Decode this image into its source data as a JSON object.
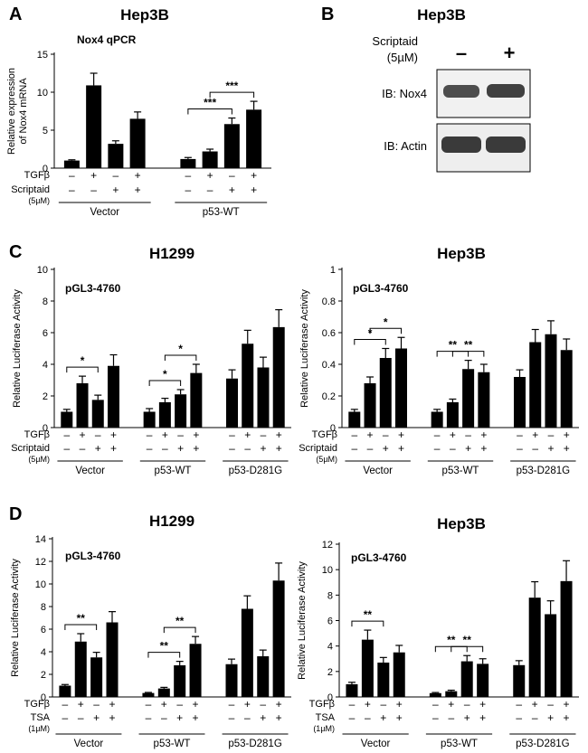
{
  "panels": {
    "A": {
      "letter": "A",
      "title": "Hep3B",
      "inset": "Nox4 qPCR",
      "ylabel": [
        "Relative expression",
        "of Nox4 mRNA"
      ]
    },
    "B": {
      "letter": "B",
      "title": "Hep3B",
      "treatment": [
        "Scriptaid",
        "(5µM)"
      ],
      "signs": [
        "–",
        "+"
      ],
      "blots": [
        "IB: Nox4",
        "IB: Actin"
      ]
    },
    "C": {
      "letter": "C"
    },
    "D": {
      "letter": "D"
    }
  },
  "chart_data": [
    {
      "id": "A",
      "type": "bar",
      "title": "Hep3B",
      "inset_label": "Nox4 qPCR",
      "ylabel": "Relative expression of Nox4 mRNA",
      "ylim": [
        0,
        15
      ],
      "yticks": [
        0,
        5,
        10,
        15
      ],
      "values": [
        1.0,
        10.9,
        3.2,
        6.5,
        1.2,
        2.2,
        5.8,
        7.7
      ],
      "errors": [
        0.1,
        1.6,
        0.4,
        0.9,
        0.2,
        0.3,
        0.8,
        1.1
      ],
      "conditions": [
        {
          "label": "TGFβ",
          "signs": [
            "–",
            "+",
            "–",
            "+",
            "–",
            "+",
            "–",
            "+"
          ]
        },
        {
          "label": "Scriptaid",
          "sub": "(5µM)",
          "signs": [
            "–",
            "–",
            "+",
            "+",
            "–",
            "–",
            "+",
            "+"
          ]
        }
      ],
      "groups": [
        {
          "label": "Vector",
          "bars": [
            0,
            3
          ]
        },
        {
          "label": "p53-WT",
          "bars": [
            4,
            7
          ]
        }
      ],
      "significance": [
        {
          "from": 4,
          "to": 6,
          "label": "***"
        },
        {
          "from": 5,
          "to": 7,
          "label": "***"
        }
      ]
    },
    {
      "id": "C1",
      "type": "bar",
      "title": "H1299",
      "inset_label": "pGL3-4760",
      "ylabel": "Relative Luciferase Activity",
      "ylim": [
        0,
        10
      ],
      "yticks": [
        0,
        2,
        4,
        6,
        8,
        10
      ],
      "values": [
        1.0,
        2.8,
        1.75,
        3.9,
        1.0,
        1.6,
        2.1,
        3.45,
        3.1,
        5.3,
        3.8,
        6.35
      ],
      "errors": [
        0.15,
        0.45,
        0.3,
        0.7,
        0.2,
        0.25,
        0.3,
        0.55,
        0.55,
        0.85,
        0.65,
        1.1
      ],
      "conditions": [
        {
          "label": "TGFβ",
          "signs": [
            "–",
            "+",
            "–",
            "+",
            "–",
            "+",
            "–",
            "+",
            "–",
            "+",
            "–",
            "+"
          ]
        },
        {
          "label": "Scriptaid",
          "sub": "(5µM)",
          "signs": [
            "–",
            "–",
            "+",
            "+",
            "–",
            "–",
            "+",
            "+",
            "–",
            "–",
            "+",
            "+"
          ]
        }
      ],
      "groups": [
        {
          "label": "Vector",
          "bars": [
            0,
            3
          ]
        },
        {
          "label": "p53-WT",
          "bars": [
            4,
            7
          ]
        },
        {
          "label": "p53-D281G",
          "bars": [
            8,
            11
          ]
        }
      ],
      "significance": [
        {
          "from": 0,
          "to": 2,
          "label": "*"
        },
        {
          "from": 4,
          "to": 6,
          "label": "*"
        },
        {
          "from": 5,
          "to": 7,
          "label": "*"
        }
      ]
    },
    {
      "id": "C2",
      "type": "bar",
      "title": "Hep3B",
      "inset_label": "pGL3-4760",
      "ylabel": "Relative Luciferase Activity",
      "ylim": [
        0,
        1
      ],
      "yticks": [
        0,
        0.2,
        0.4,
        0.6,
        0.8,
        1
      ],
      "values": [
        0.1,
        0.28,
        0.44,
        0.5,
        0.1,
        0.16,
        0.37,
        0.35,
        0.32,
        0.54,
        0.59,
        0.49
      ],
      "errors": [
        0.015,
        0.04,
        0.06,
        0.07,
        0.015,
        0.02,
        0.055,
        0.05,
        0.045,
        0.08,
        0.085,
        0.07
      ],
      "conditions": [
        {
          "label": "TGFβ",
          "signs": [
            "–",
            "+",
            "–",
            "+",
            "–",
            "+",
            "–",
            "+",
            "–",
            "+",
            "–",
            "+"
          ]
        },
        {
          "label": "Scriptaid",
          "sub": "(5µM)",
          "signs": [
            "–",
            "–",
            "+",
            "+",
            "–",
            "–",
            "+",
            "+",
            "–",
            "–",
            "+",
            "+"
          ]
        }
      ],
      "groups": [
        {
          "label": "Vector",
          "bars": [
            0,
            3
          ]
        },
        {
          "label": "p53-WT",
          "bars": [
            4,
            7
          ]
        },
        {
          "label": "p53-D281G",
          "bars": [
            8,
            11
          ]
        }
      ],
      "significance": [
        {
          "from": 0,
          "to": 2,
          "label": "*"
        },
        {
          "from": 1,
          "to": 3,
          "label": "*"
        },
        {
          "from": 4,
          "to": 6,
          "label": "**"
        },
        {
          "from": 5,
          "to": 7,
          "label": "**"
        }
      ]
    },
    {
      "id": "D1",
      "type": "bar",
      "title": "H1299",
      "inset_label": "pGL3-4760",
      "ylabel": "Relative Luciferase Activity",
      "ylim": [
        0,
        14
      ],
      "yticks": [
        0,
        2,
        4,
        6,
        8,
        10,
        12,
        14
      ],
      "values": [
        1.0,
        4.9,
        3.5,
        6.6,
        0.35,
        0.75,
        2.8,
        4.7,
        2.9,
        7.8,
        3.6,
        10.3
      ],
      "errors": [
        0.1,
        0.7,
        0.45,
        0.95,
        0.05,
        0.1,
        0.35,
        0.65,
        0.45,
        1.15,
        0.55,
        1.55
      ],
      "conditions": [
        {
          "label": "TGFβ",
          "signs": [
            "–",
            "+",
            "–",
            "+",
            "–",
            "+",
            "–",
            "+",
            "–",
            "+",
            "–",
            "+"
          ]
        },
        {
          "label": "TSA",
          "sub": "(1µM)",
          "signs": [
            "–",
            "–",
            "+",
            "+",
            "–",
            "–",
            "+",
            "+",
            "–",
            "–",
            "+",
            "+"
          ]
        }
      ],
      "groups": [
        {
          "label": "Vector",
          "bars": [
            0,
            3
          ]
        },
        {
          "label": "p53-WT",
          "bars": [
            4,
            7
          ]
        },
        {
          "label": "p53-D281G",
          "bars": [
            8,
            11
          ]
        }
      ],
      "significance": [
        {
          "from": 0,
          "to": 2,
          "label": "**"
        },
        {
          "from": 4,
          "to": 6,
          "label": "**"
        },
        {
          "from": 5,
          "to": 7,
          "label": "**"
        }
      ]
    },
    {
      "id": "D2",
      "type": "bar",
      "title": "Hep3B",
      "inset_label": "pGL3-4760",
      "ylabel": "Relative Luciferase Activity",
      "ylim": [
        0,
        12
      ],
      "yticks": [
        0,
        2,
        4,
        6,
        8,
        10,
        12
      ],
      "values": [
        1.0,
        4.5,
        2.7,
        3.5,
        0.3,
        0.45,
        2.8,
        2.6,
        2.5,
        7.8,
        6.5,
        9.1
      ],
      "errors": [
        0.15,
        0.75,
        0.4,
        0.55,
        0.05,
        0.08,
        0.45,
        0.4,
        0.35,
        1.25,
        1.05,
        1.6
      ],
      "conditions": [
        {
          "label": "TGFβ",
          "signs": [
            "–",
            "+",
            "–",
            "+",
            "–",
            "+",
            "–",
            "+",
            "–",
            "+",
            "–",
            "+"
          ]
        },
        {
          "label": "TSA",
          "sub": "(1µM)",
          "signs": [
            "–",
            "–",
            "+",
            "+",
            "–",
            "–",
            "+",
            "+",
            "–",
            "–",
            "+",
            "+"
          ]
        }
      ],
      "groups": [
        {
          "label": "Vector",
          "bars": [
            0,
            3
          ]
        },
        {
          "label": "p53-WT",
          "bars": [
            4,
            7
          ]
        },
        {
          "label": "p53-D281G",
          "bars": [
            8,
            11
          ]
        }
      ],
      "significance": [
        {
          "from": 0,
          "to": 2,
          "label": "**"
        },
        {
          "from": 4,
          "to": 6,
          "label": "**"
        },
        {
          "from": 5,
          "to": 7,
          "label": "**"
        }
      ]
    }
  ]
}
